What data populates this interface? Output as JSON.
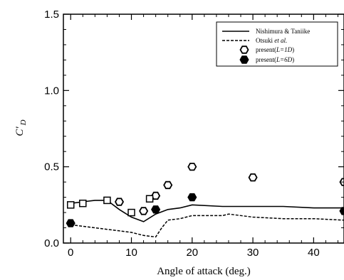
{
  "chart_data": {
    "type": "scatter",
    "xlabel": "Angle of attack (deg.)",
    "ylabel": "C'",
    "ylabel_sub": "D",
    "xlim": [
      -1.2,
      45
    ],
    "ylim": [
      0,
      1.5
    ],
    "xticks": [
      0,
      10,
      20,
      30,
      40
    ],
    "xtick_labels": [
      "0",
      "10",
      "20",
      "30",
      "40"
    ],
    "yticks": [
      0,
      0.5,
      1.0,
      1.5
    ],
    "ytick_labels": [
      "0.0",
      "0.5",
      "1.0",
      "1.5"
    ],
    "grid": false,
    "legend_position": "top-right",
    "series": [
      {
        "name": "Nishimura & Taniike",
        "kind": "line",
        "style": "solid",
        "x": [
          0,
          2,
          4,
          6,
          8,
          10,
          12,
          14,
          16,
          18,
          20,
          25,
          30,
          35,
          40,
          45
        ],
        "y": [
          0.26,
          0.27,
          0.28,
          0.28,
          0.22,
          0.17,
          0.14,
          0.19,
          0.22,
          0.23,
          0.25,
          0.24,
          0.24,
          0.24,
          0.23,
          0.23
        ]
      },
      {
        "name": "Otsuki et al.",
        "name_main": "Otsuki ",
        "name_italic": "et al.",
        "kind": "line",
        "style": "dashed",
        "x": [
          0,
          2,
          4,
          6,
          8,
          10,
          12,
          14,
          15,
          16,
          18,
          20,
          25,
          26,
          30,
          35,
          40,
          45
        ],
        "y": [
          0.12,
          0.11,
          0.1,
          0.09,
          0.08,
          0.07,
          0.05,
          0.04,
          0.1,
          0.15,
          0.16,
          0.18,
          0.18,
          0.19,
          0.17,
          0.16,
          0.16,
          0.15
        ]
      },
      {
        "name": "present(L=1D)",
        "name_main": "present(",
        "name_italic": "L=1D",
        "name_end": ")",
        "kind": "marker",
        "marker": "hexagon-open",
        "x": [
          8,
          12,
          14,
          16,
          20,
          30,
          45
        ],
        "y": [
          0.27,
          0.21,
          0.31,
          0.38,
          0.5,
          0.43,
          0.4
        ]
      },
      {
        "name": "present(L=6D)",
        "name_main": "present(",
        "name_italic": "L=6D",
        "name_end": ")",
        "kind": "marker",
        "marker": "hexagon-filled",
        "x": [
          0,
          14,
          20,
          45
        ],
        "y": [
          0.13,
          0.22,
          0.3,
          0.21
        ]
      },
      {
        "kind": "marker",
        "marker": "square-open",
        "x": [
          0,
          2,
          6,
          10,
          13
        ],
        "y": [
          0.25,
          0.26,
          0.28,
          0.2,
          0.29
        ]
      }
    ]
  }
}
